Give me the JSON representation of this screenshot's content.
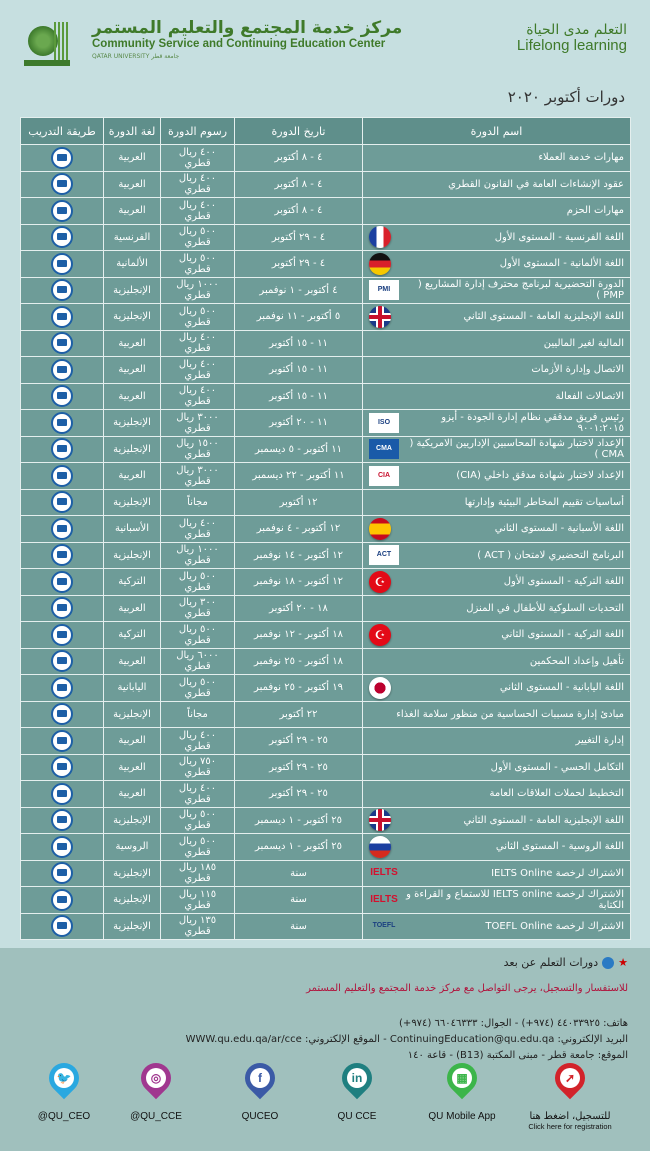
{
  "header": {
    "center_name_ar": "مركز خدمة المجتمع والتعليم المستمر",
    "center_name_en": "Community Service and Continuing Education Center",
    "university": "QATAR UNIVERSITY جامعة قطر",
    "tagline_ar": "التعلم مدى الحياة",
    "tagline_en": "Lifelong learning"
  },
  "title": "دورات أكتوبر ٢٠٢٠",
  "table": {
    "columns": [
      "اسم الدورة",
      "تاريخ الدورة",
      "رسوم الدورة",
      "لغة الدورة",
      "طريقة التدريب"
    ],
    "rows": [
      {
        "name": "مهارات خدمة العملاء",
        "date": "٤ - ٨ أكتوبر",
        "fee": "٤٠٠ ريال قطري",
        "lang": "العربية",
        "icon": ""
      },
      {
        "name": "عقود الإنشاءات العامة في القانون القطري",
        "date": "٤ - ٨ أكتوبر",
        "fee": "٤٠٠ ريال قطري",
        "lang": "العربية",
        "icon": ""
      },
      {
        "name": "مهارات الحزم",
        "date": "٤ - ٨ أكتوبر",
        "fee": "٤٠٠ ريال قطري",
        "lang": "العربية",
        "icon": ""
      },
      {
        "name": "اللغة الفرنسية - المستوى الأول",
        "date": "٤ - ٢٩ أكتوبر",
        "fee": "٥٠٠ ريال قطري",
        "lang": "الفرنسية",
        "icon": "flag-france"
      },
      {
        "name": "اللغة الألمانية - المستوى الأول",
        "date": "٤ - ٢٩ أكتوبر",
        "fee": "٥٠٠ ريال قطري",
        "lang": "الألمانية",
        "icon": "flag-germany"
      },
      {
        "name": "الدورة التحضيرية لبرنامج محترف إدارة المشاريع ( PMP )",
        "date": "٤ أكتوبر - ١ نوفمبر",
        "fee": "١٠٠٠ ريال قطري",
        "lang": "الإنجليزية",
        "icon": "pmi-logo",
        "badge": "PMI"
      },
      {
        "name": "اللغة الإنجليزية العامة - المستوى الثاني",
        "date": "٥ أكتوبر - ١١ نوفمبر",
        "fee": "٥٠٠ ريال قطري",
        "lang": "الإنجليزية",
        "icon": "flag-uk"
      },
      {
        "name": "المالية لغير الماليين",
        "date": "١١ - ١٥ أكتوبر",
        "fee": "٤٠٠ ريال قطري",
        "lang": "العربية",
        "icon": ""
      },
      {
        "name": "الاتصال وإدارة الأزمات",
        "date": "١١ - ١٥ أكتوبر",
        "fee": "٤٠٠ ريال قطري",
        "lang": "العربية",
        "icon": ""
      },
      {
        "name": "الاتصالات الفعالة",
        "date": "١١ - ١٥ أكتوبر",
        "fee": "٤٠٠ ريال قطري",
        "lang": "العربية",
        "icon": ""
      },
      {
        "name": "رئيس فريق مدققي نظام إدارة الجودة - أيزو ٩٠٠١:٢٠١٥",
        "date": "١١ - ٢٠ أكتوبر",
        "fee": "٣٠٠٠ ريال قطري",
        "lang": "الإنجليزية",
        "icon": "iso-logo",
        "badge": "ISO"
      },
      {
        "name": "الإعداد لاختبار شهادة المحاسبين الإداريين الامريكية ( CMA )",
        "date": "١١ أكتوبر - ٥ ديسمبر",
        "fee": "١٥٠٠ ريال قطري",
        "lang": "الإنجليزية",
        "icon": "cma-logo",
        "badge": "CMA"
      },
      {
        "name": "الإعداد لاختبار شهادة مدقق داخلي (CIA)",
        "date": "١١ أكتوبر - ٢٢ ديسمبر",
        "fee": "٣٠٠٠ ريال قطري",
        "lang": "العربية",
        "icon": "cia-logo",
        "badge": "CIA"
      },
      {
        "name": "أساسيات تقييم المخاطر البيئية وإدارتها",
        "date": "١٢ أكتوبر",
        "fee": "مجاناً",
        "lang": "الإنجليزية",
        "icon": ""
      },
      {
        "name": "اللغة الأسبانية - المستوى الثاني",
        "date": "١٢ أكتوبر - ٤ نوفمبر",
        "fee": "٤٠٠ ريال قطري",
        "lang": "الأسبانية",
        "icon": "flag-spain"
      },
      {
        "name": "البرنامج التحضيري لامتحان ( ACT )",
        "date": "١٢ أكتوبر - ١٤ نوفمبر",
        "fee": "١٠٠٠ ريال قطري",
        "lang": "الإنجليزية",
        "icon": "act-logo",
        "badge": "ACT"
      },
      {
        "name": "اللغة التركية - المستوى الأول",
        "date": "١٢ أكتوبر - ١٨ نوفمبر",
        "fee": "٥٠٠ ريال قطري",
        "lang": "التركية",
        "icon": "flag-turkey"
      },
      {
        "name": "التحديات السلوكية للأطفال في المنزل",
        "date": "١٨ - ٢٠ أكتوبر",
        "fee": "٣٠٠ ريال قطري",
        "lang": "العربية",
        "icon": ""
      },
      {
        "name": "اللغة التركية - المستوى الثاني",
        "date": "١٨ أكتوبر - ١٢ نوفمبر",
        "fee": "٥٠٠ ريال قطري",
        "lang": "التركية",
        "icon": "flag-turkey"
      },
      {
        "name": "تأهيل وإعداد المحكمين",
        "date": "١٨ أكتوبر - ٢٥ نوفمبر",
        "fee": "٦٠٠٠ ريال قطري",
        "lang": "العربية",
        "icon": ""
      },
      {
        "name": "اللغة اليابانية - المستوى الثاني",
        "date": "١٩ أكتوبر - ٢٥ نوفمبر",
        "fee": "٥٠٠ ريال قطري",
        "lang": "اليابانية",
        "icon": "flag-japan"
      },
      {
        "name": "مبادئ إدارة مسببات الحساسية من منظور سلامة الغذاء",
        "date": "٢٢ أكتوبر",
        "fee": "مجاناً",
        "lang": "الإنجليزية",
        "icon": ""
      },
      {
        "name": "إدارة التغيير",
        "date": "٢٥ - ٢٩ أكتوبر",
        "fee": "٤٠٠ ريال قطري",
        "lang": "العربية",
        "icon": ""
      },
      {
        "name": "التكامل الحسي - المستوى الأول",
        "date": "٢٥ - ٢٩ أكتوبر",
        "fee": "٧٥٠ ريال قطري",
        "lang": "العربية",
        "icon": ""
      },
      {
        "name": "التخطيط لحملات العلاقات العامة",
        "date": "٢٥ - ٢٩ أكتوبر",
        "fee": "٤٠٠ ريال قطري",
        "lang": "العربية",
        "icon": ""
      },
      {
        "name": "اللغة الإنجليزية العامة - المستوى الثاني",
        "date": "٢٥ أكتوبر - ١ ديسمبر",
        "fee": "٥٠٠ ريال قطري",
        "lang": "الإنجليزية",
        "icon": "flag-uk"
      },
      {
        "name": "اللغة الروسية - المستوى الثاني",
        "date": "٢٥ أكتوبر - ١ ديسمبر",
        "fee": "٥٠٠ ريال قطري",
        "lang": "الروسية",
        "icon": "flag-russia"
      },
      {
        "name": "الاشتراك لرخصة IELTS Online",
        "date": "سنة",
        "fee": "١٨٥ ريال قطري",
        "lang": "الإنجليزية",
        "icon": "ielts-logo",
        "badge": "IELTS"
      },
      {
        "name": "الاشتراك لرخصة IELTS online للاستماع و القراءة و الكتابة",
        "date": "سنة",
        "fee": "١١٥ ريال قطري",
        "lang": "الإنجليزية",
        "icon": "ielts-logo",
        "badge": "IELTS"
      },
      {
        "name": "الاشتراك لرخصة TOEFL Online",
        "date": "سنة",
        "fee": "١٣٥ ريال قطري",
        "lang": "الإنجليزية",
        "icon": "toefl-logo",
        "badge": "TOEFL"
      }
    ]
  },
  "footer": {
    "remote_note": "دورات التعلم عن بعد",
    "inquiry": "للاستفسار والتسجيل، يرجى التواصل مع مركز خدمة المجتمع والتعليم المستمر",
    "phone": "هاتف: ٤٤٠٣٣٩٢٥ (٩٧٤+) - الجوال: ٦٦٠٤٦٣٣٣ (٩٧٤+)",
    "email": "البريد الإلكتروني: ContinuingEducation@qu.edu.qa - الموقع الإلكتروني: WWW.qu.edu.qa/ar/cce",
    "location": "الموقع: جامعة قطر - مبنى المكتبة (B13) - قاعة ١٤٠",
    "social": [
      {
        "label": "@QU_CEO",
        "icon": "twitter-icon",
        "color": "#2aa8e0"
      },
      {
        "label": "@QU_CCE",
        "icon": "instagram-icon",
        "color": "#a0378f"
      },
      {
        "label": "QUCEO",
        "icon": "facebook-icon",
        "color": "#3b5aa6"
      },
      {
        "label": "QU CCE",
        "icon": "linkedin-icon",
        "color": "#1f7f80"
      },
      {
        "label": "QU Mobile App",
        "icon": "app-icon",
        "color": "#3cb54a"
      },
      {
        "label": "للتسجيل، اضغط هنا",
        "sub": "Click here for registration",
        "icon": "cursor-icon",
        "color": "#d2232a"
      }
    ]
  }
}
